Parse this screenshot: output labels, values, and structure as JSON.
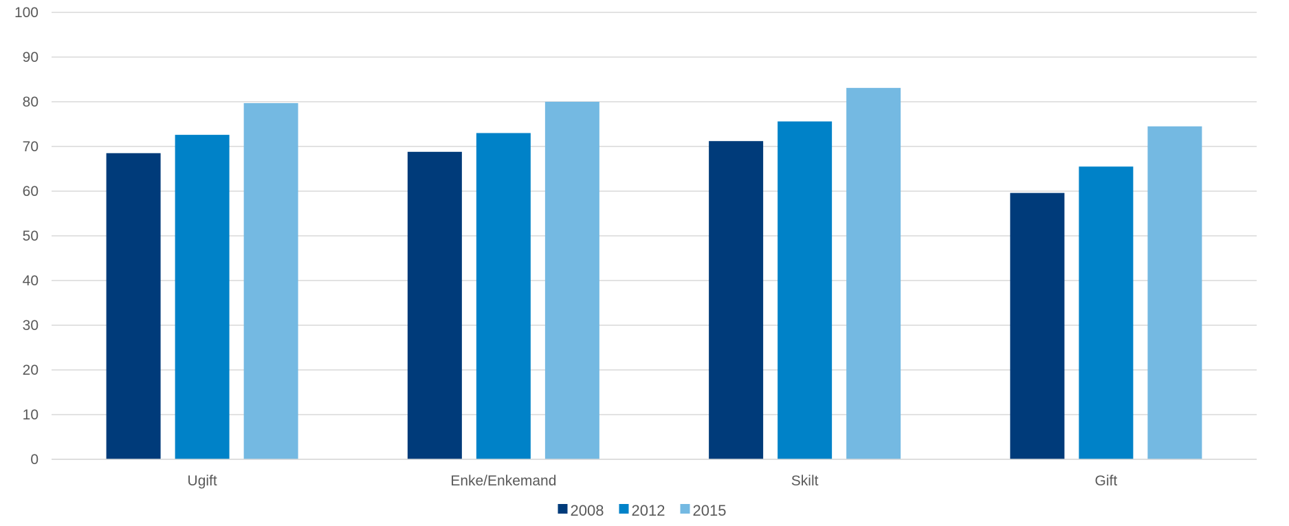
{
  "chart_data": {
    "type": "bar",
    "title": "",
    "xlabel": "",
    "ylabel": "",
    "categories": [
      "Ugift",
      "Enke/Enkemand",
      "Skilt",
      "Gift"
    ],
    "series": [
      {
        "name": "2008",
        "color": "#003b7a",
        "values": [
          68.5,
          68.8,
          71.2,
          59.6
        ]
      },
      {
        "name": "2012",
        "color": "#0082c8",
        "values": [
          72.6,
          73.0,
          75.6,
          65.5
        ]
      },
      {
        "name": "2015",
        "color": "#74b9e2",
        "values": [
          79.7,
          80.0,
          83.1,
          74.5
        ]
      }
    ],
    "ylim": [
      0,
      100
    ],
    "yticks": [
      "0",
      "10",
      "20",
      "30",
      "40",
      "50",
      "60",
      "70",
      "80",
      "90",
      "100"
    ],
    "grid": true,
    "legend_position": "bottom-center"
  }
}
